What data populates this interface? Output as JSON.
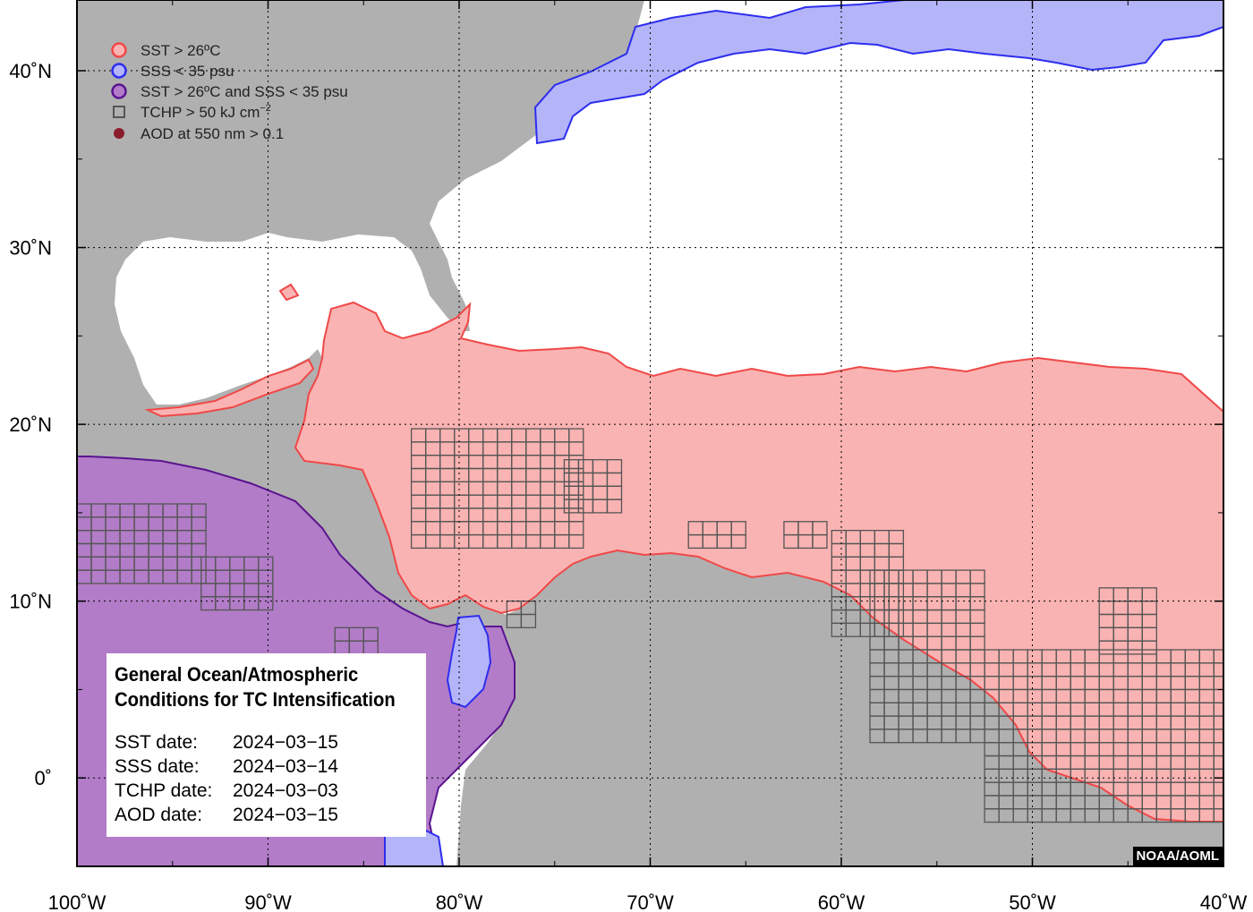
{
  "map": {
    "lon_range": [
      -100,
      -40
    ],
    "lat_range": [
      -5,
      44
    ],
    "lon_ticks": [
      {
        "value": -100,
        "label": "100˚W"
      },
      {
        "value": -90,
        "label": "90˚W"
      },
      {
        "value": -80,
        "label": "80˚W"
      },
      {
        "value": -70,
        "label": "70˚W"
      },
      {
        "value": -60,
        "label": "60˚W"
      },
      {
        "value": -50,
        "label": "50˚W"
      },
      {
        "value": -40,
        "label": "40˚W"
      }
    ],
    "lat_ticks": [
      {
        "value": 40,
        "label": "40˚N"
      },
      {
        "value": 30,
        "label": "30˚N"
      },
      {
        "value": 20,
        "label": "20˚N"
      },
      {
        "value": 10,
        "label": "10˚N"
      },
      {
        "value": 0,
        "label": "0˚"
      }
    ],
    "grid": "dotted"
  },
  "legend": {
    "placement": "top-left",
    "items": [
      {
        "label": "SST > 26ºC",
        "symbol": "circle",
        "fill": "#f9b3b2",
        "stroke": "#f04848"
      },
      {
        "label": "SSS < 35 psu",
        "symbol": "circle",
        "fill": "#b4b4f8",
        "stroke": "#2d2df0"
      },
      {
        "label": "SST > 26ºC and SSS < 35 psu",
        "symbol": "circle",
        "fill": "#b27cc8",
        "stroke": "#5a1490"
      },
      {
        "label": "TCHP > 50 kJ cm",
        "label_sup": "−2",
        "symbol": "square",
        "fill": "none",
        "stroke": "#555555"
      },
      {
        "label": "AOD at 550 nm > 0.1",
        "symbol": "dot",
        "fill": "#8a1c2c",
        "stroke": "#8a1c2c"
      }
    ]
  },
  "info_box": {
    "title_line1": "General Ocean/Atmospheric",
    "title_line2": "Conditions for TC Intensification",
    "rows": [
      {
        "label": "SST date:",
        "value": "2024−03−15"
      },
      {
        "label": "SSS date:",
        "value": "2024−03−14"
      },
      {
        "label": "TCHP date:",
        "value": "2024−03−03"
      },
      {
        "label": "AOD date:",
        "value": "2024−03−15"
      }
    ]
  },
  "credit": "NOAA/AOML",
  "colors": {
    "land": "#b0b0b0",
    "ocean": "#ffffff",
    "sst": "#f9b3b2",
    "sst_edge": "#f04848",
    "sss": "#b4b4f8",
    "sss_edge": "#2d2df0",
    "both": "#b27cc8",
    "both_edge": "#5a1490",
    "tchp_grid": "#555555"
  },
  "tchp_cells": [
    {
      "lon_min": -82.5,
      "lon_max": -74.0,
      "lat_min": 13.0,
      "lat_max": 19.5
    },
    {
      "lon_min": -74.5,
      "lon_max": -71.5,
      "lat_min": 15.0,
      "lat_max": 17.5
    },
    {
      "lon_min": -100.0,
      "lon_max": -93.5,
      "lat_min": 11.0,
      "lat_max": 15.5
    },
    {
      "lon_min": -93.5,
      "lon_max": -90.0,
      "lat_min": 9.5,
      "lat_max": 12.5
    },
    {
      "lon_min": -68.0,
      "lon_max": -65.5,
      "lat_min": 13.0,
      "lat_max": 14.5
    },
    {
      "lon_min": -63.0,
      "lon_max": -61.0,
      "lat_min": 13.0,
      "lat_max": 14.5
    },
    {
      "lon_min": -60.5,
      "lon_max": -57.0,
      "lat_min": 8.0,
      "lat_max": 14.0
    },
    {
      "lon_min": -58.5,
      "lon_max": -52.5,
      "lat_min": 2.0,
      "lat_max": 11.5
    },
    {
      "lon_min": -52.5,
      "lon_max": -40.0,
      "lat_min": -2.5,
      "lat_max": 7.0
    },
    {
      "lon_min": -46.5,
      "lon_max": -43.5,
      "lat_min": 7.0,
      "lat_max": 10.5
    },
    {
      "lon_min": -77.5,
      "lon_max": -76.0,
      "lat_min": 8.5,
      "lat_max": 10.0
    },
    {
      "lon_min": -86.5,
      "lon_max": -84.5,
      "lat_min": 7.0,
      "lat_max": 8.0
    }
  ]
}
